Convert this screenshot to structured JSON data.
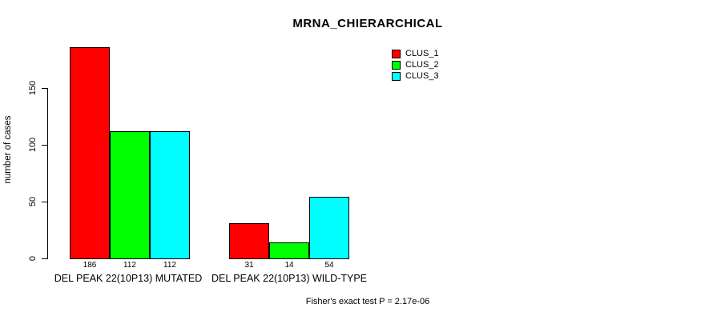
{
  "chart_data": {
    "type": "bar",
    "title": "MRNA_CHIERARCHICAL",
    "xlabel": "",
    "ylabel": "number of cases",
    "ylim": [
      0,
      186
    ],
    "yticks": [
      0,
      50,
      100,
      150
    ],
    "grid": false,
    "legend_position": "top-right",
    "categories": [
      "DEL PEAK 22(10P13) MUTATED",
      "DEL PEAK 22(10P13) WILD-TYPE"
    ],
    "series": [
      {
        "name": "CLUS_1",
        "color": "#ff0000",
        "values": [
          186,
          31
        ]
      },
      {
        "name": "CLUS_2",
        "color": "#00ff00",
        "values": [
          112,
          14
        ]
      },
      {
        "name": "CLUS_3",
        "color": "#00ffff",
        "values": [
          112,
          54
        ]
      }
    ],
    "bar_value_labels": [
      [
        186,
        112,
        112
      ],
      [
        31,
        14,
        54
      ]
    ],
    "annotation": "Fisher's exact test P = 2.17e-06"
  },
  "colors": {
    "axis": "#000000",
    "text": "#000000",
    "background": "#ffffff"
  }
}
